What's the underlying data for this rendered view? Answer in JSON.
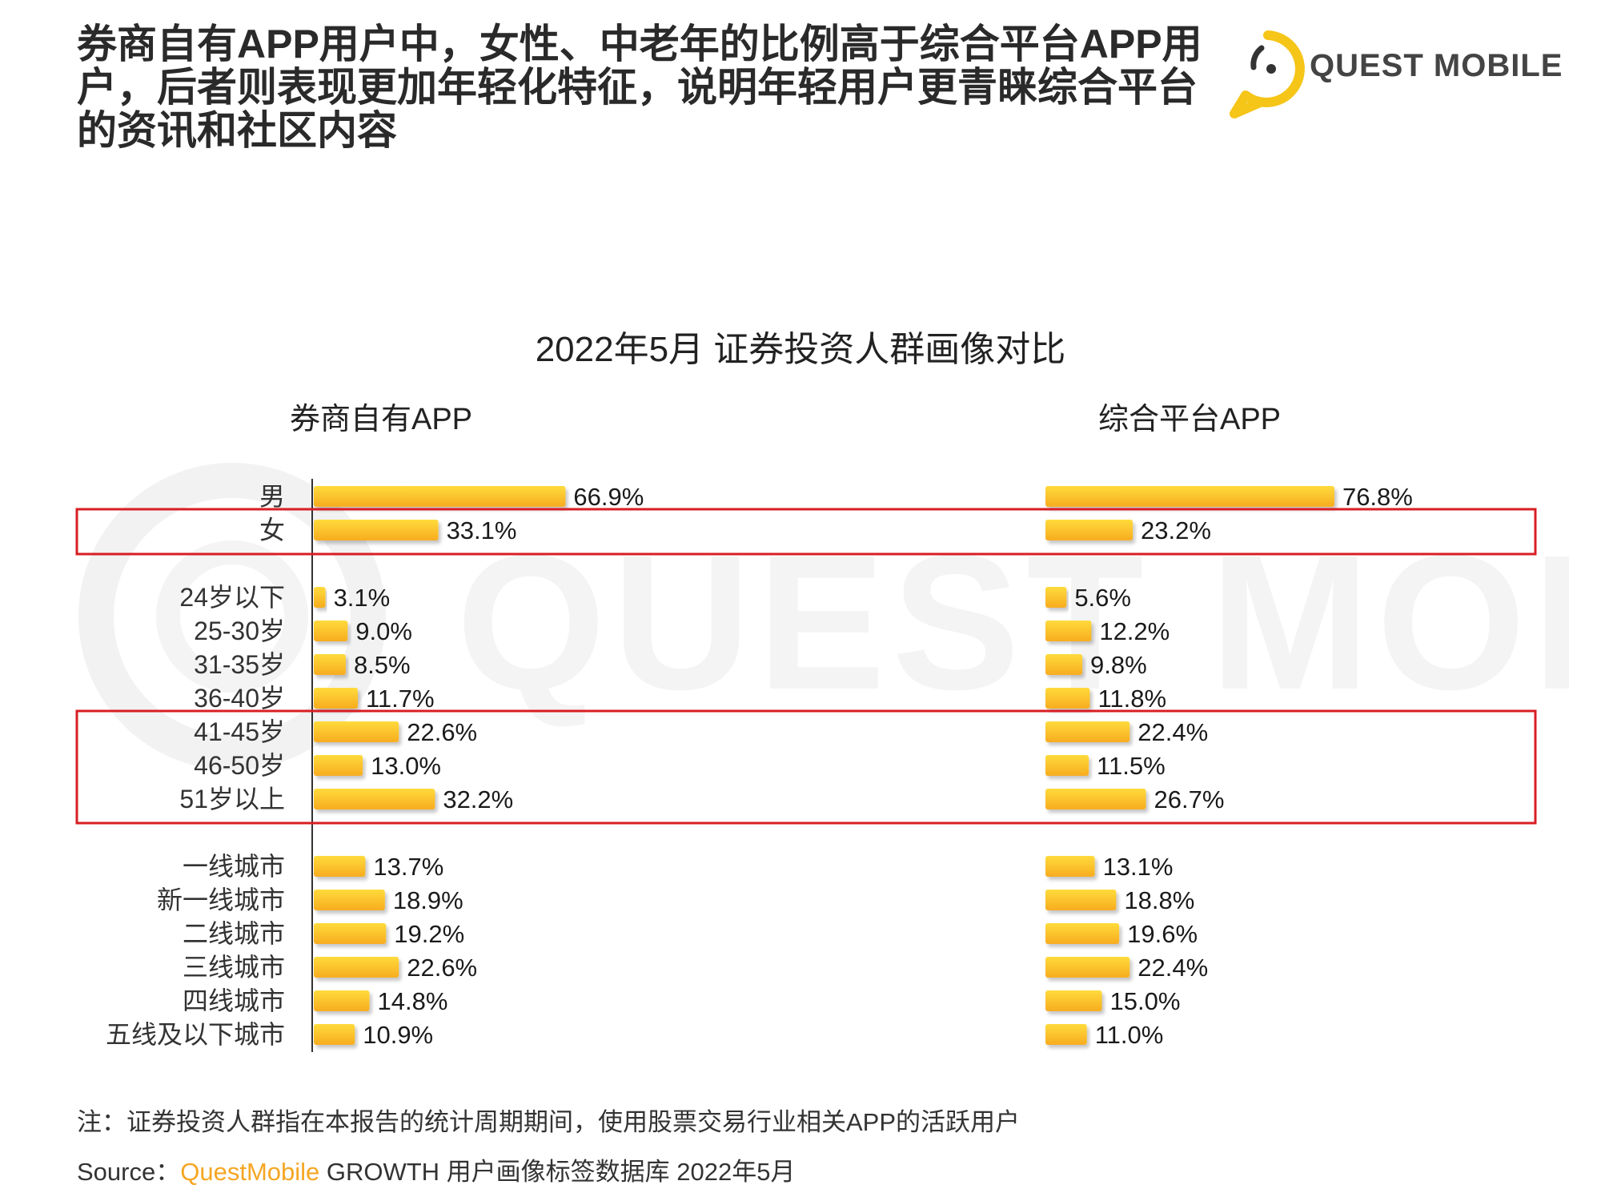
{
  "headline": "券商自有APP用户中，女性、中老年的比例高于综合平台APP用户，后者则表现更加年轻化特征，说明年轻用户更青睐综合平台的资讯和社区内容",
  "logo": {
    "text": "QUEST MOBILE",
    "icon": "quest-mobile-logo-icon",
    "color": "#f5c518"
  },
  "watermark": {
    "text": "QUEST MOBILE"
  },
  "chart_data": {
    "type": "bar",
    "orientation": "horizontal",
    "title": "2022年5月 证券投资人群画像对比",
    "value_unit": "%",
    "categories": [
      "男",
      "女",
      "24岁以下",
      "25-30岁",
      "31-35岁",
      "36-40岁",
      "41-45岁",
      "46-50岁",
      "51岁以上",
      "一线城市",
      "新一线城市",
      "二线城市",
      "三线城市",
      "四线城市",
      "五线及以下城市"
    ],
    "groups": [
      {
        "categories": [
          "男",
          "女"
        ]
      },
      {
        "categories": [
          "24岁以下",
          "25-30岁",
          "31-35岁",
          "36-40岁",
          "41-45岁",
          "46-50岁",
          "51岁以上"
        ]
      },
      {
        "categories": [
          "一线城市",
          "新一线城市",
          "二线城市",
          "三线城市",
          "四线城市",
          "五线及以下城市"
        ]
      }
    ],
    "series": [
      {
        "name": "券商自有APP",
        "values": [
          66.9,
          33.1,
          3.1,
          9.0,
          8.5,
          11.7,
          22.6,
          13.0,
          32.2,
          13.7,
          18.9,
          19.2,
          22.6,
          14.8,
          10.9
        ],
        "labels": [
          "66.9%",
          "33.1%",
          "3.1%",
          "9.0%",
          "8.5%",
          "11.7%",
          "22.6%",
          "13.0%",
          "32.2%",
          "13.7%",
          "18.9%",
          "19.2%",
          "22.6%",
          "14.8%",
          "10.9%"
        ]
      },
      {
        "name": "综合平台APP",
        "values": [
          76.8,
          23.2,
          5.6,
          12.2,
          9.8,
          11.8,
          22.4,
          11.5,
          26.7,
          13.1,
          18.8,
          19.6,
          22.4,
          15.0,
          11.0
        ],
        "labels": [
          "76.8%",
          "23.2%",
          "5.6%",
          "12.2%",
          "9.8%",
          "11.8%",
          "22.4%",
          "11.5%",
          "26.7%",
          "13.1%",
          "18.8%",
          "19.6%",
          "22.4%",
          "15.0%",
          "11.0%"
        ]
      }
    ],
    "highlighted_categories": [
      [
        "女"
      ],
      [
        "41-45岁",
        "46-50岁",
        "51岁以上"
      ]
    ],
    "colors": {
      "bar_light": "#ffdb3c",
      "bar_dark": "#f7ac1f",
      "highlight_box": "#d81e23",
      "axis": "#333333"
    },
    "grid": false,
    "legend": "none"
  },
  "note": "注：证券投资人群指在本报告的统计周期期间，使用股票交易行业相关APP的活跃用户",
  "source": {
    "prefix": "Source：",
    "brand": "QuestMobile",
    "rest": " GROWTH 用户画像标签数据库 2022年5月"
  }
}
